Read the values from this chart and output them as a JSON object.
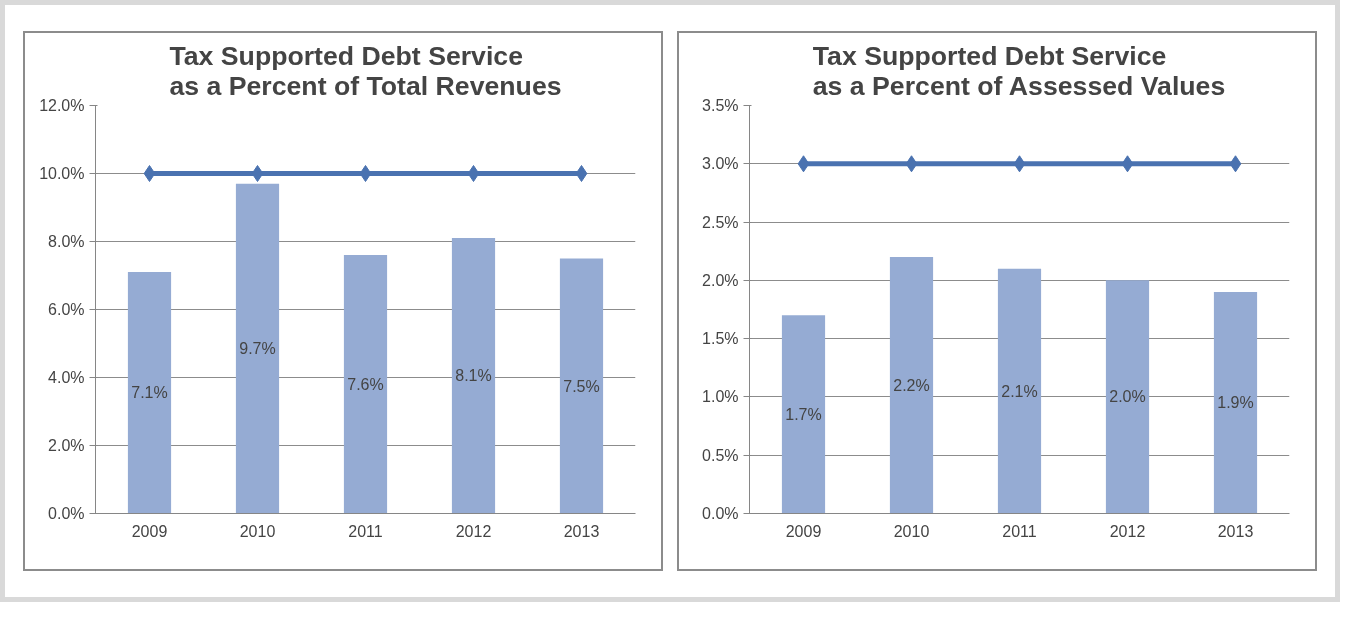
{
  "chart_data": [
    {
      "type": "bar",
      "title": "Tax Supported Debt Service\nas a Percent of Total Revenues",
      "categories": [
        "2009",
        "2010",
        "2011",
        "2012",
        "2013"
      ],
      "series": [
        {
          "color": "#95abd3",
          "values": [
            7.1,
            9.7,
            7.6,
            8.1,
            7.5
          ],
          "value_labels": [
            "7.1%",
            "9.7%",
            "7.6%",
            "8.1%",
            "7.5%"
          ]
        },
        {
          "type": "line",
          "color": "#4a72b0",
          "values": [
            10,
            10,
            10,
            10,
            10
          ],
          "marker": "diamond"
        }
      ],
      "ylim": [
        0,
        12
      ],
      "yticks": [
        {
          "value": 0,
          "label": "0.0%"
        },
        {
          "value": 2,
          "label": "2.0%"
        },
        {
          "value": 4,
          "label": "4.0%"
        },
        {
          "value": 6,
          "label": "6.0%"
        },
        {
          "value": 8,
          "label": "8.0%"
        },
        {
          "value": 10,
          "label": "10.0%"
        },
        {
          "value": 12,
          "label": "12.0%"
        }
      ],
      "grid": "y"
    },
    {
      "type": "bar",
      "title": "Tax Supported Debt Service\nas a Percent of Assessed Values",
      "categories": [
        "2009",
        "2010",
        "2011",
        "2012",
        "2013"
      ],
      "series": [
        {
          "color": "#95abd3",
          "values": [
            1.7,
            2.2,
            2.1,
            2.0,
            1.9
          ],
          "value_labels": [
            "1.7%",
            "2.2%",
            "2.1%",
            "2.0%",
            "1.9%"
          ]
        },
        {
          "type": "line",
          "color": "#4a72b0",
          "values": [
            3,
            3,
            3,
            3,
            3
          ],
          "marker": "diamond"
        }
      ],
      "ylim": [
        0,
        3.5
      ],
      "yticks": [
        {
          "value": 0,
          "label": "0.0%"
        },
        {
          "value": 0.5,
          "label": "0.5%"
        },
        {
          "value": 1,
          "label": "1.0%"
        },
        {
          "value": 1.5,
          "label": "1.5%"
        },
        {
          "value": 2,
          "label": "2.0%"
        },
        {
          "value": 2.5,
          "label": "2.5%"
        },
        {
          "value": 3,
          "label": "3.0%"
        },
        {
          "value": 3.5,
          "label": "3.5%"
        }
      ],
      "grid": "y"
    }
  ]
}
